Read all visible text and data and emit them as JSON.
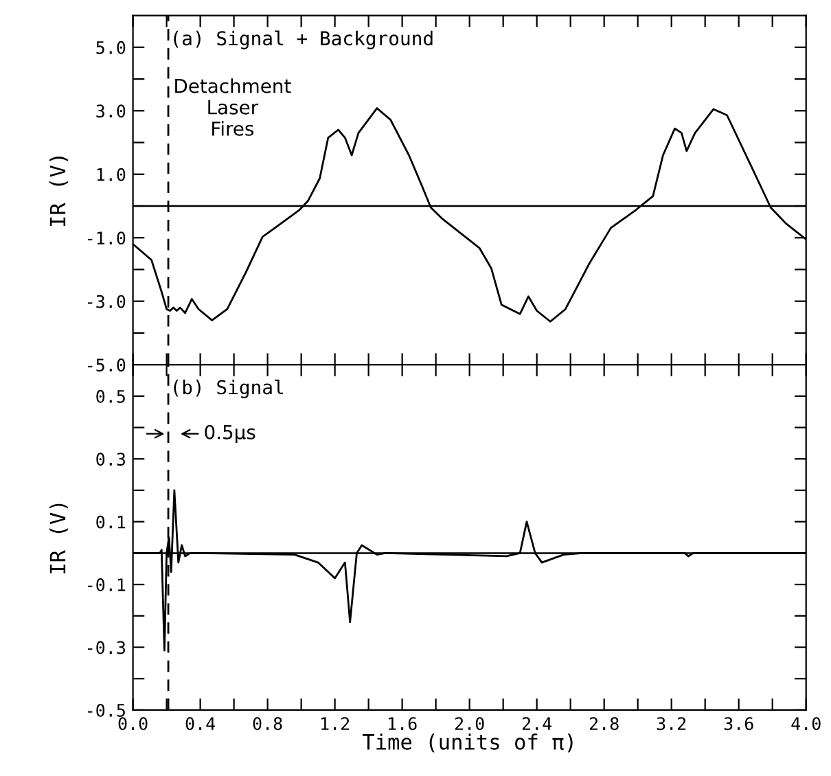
{
  "chart_data": [
    {
      "type": "line",
      "ylabel": "IR (V)",
      "tick_labels": "y",
      "grid": false,
      "legend": false,
      "line_style": "solid",
      "marker": "none",
      "annotations": [
        "(a) Signal + Background"
      ],
      "xlim": [
        0,
        4
      ],
      "xticks": [
        {
          "value": 0,
          "label": null
        },
        {
          "value": 0.2,
          "label": null
        },
        {
          "value": 0.4,
          "label": null
        },
        {
          "value": 0.6,
          "label": null
        },
        {
          "value": 0.8,
          "label": null
        },
        {
          "value": 1.0,
          "label": null
        },
        {
          "value": 1.2,
          "label": null
        },
        {
          "value": 1.4,
          "label": null
        },
        {
          "value": 1.6,
          "label": null
        },
        {
          "value": 1.8,
          "label": null
        },
        {
          "value": 2.0,
          "label": null
        },
        {
          "value": 2.2,
          "label": null
        },
        {
          "value": 2.4,
          "label": null
        },
        {
          "value": 2.6,
          "label": null
        },
        {
          "value": 2.8,
          "label": null
        },
        {
          "value": 3.0,
          "label": null
        },
        {
          "value": 3.2,
          "label": null
        },
        {
          "value": 3.4,
          "label": null
        },
        {
          "value": 3.6,
          "label": null
        },
        {
          "value": 3.8,
          "label": null
        },
        {
          "value": 4.0,
          "label": null
        }
      ],
      "ylim": [
        -5,
        6
      ],
      "yticks": [
        {
          "value": -5,
          "label": "-5.0"
        },
        {
          "value": -4,
          "label": null
        },
        {
          "value": -3,
          "label": "-3.0"
        },
        {
          "value": -2,
          "label": null
        },
        {
          "value": -1,
          "label": "-1.0"
        },
        {
          "value": 0,
          "label": null
        },
        {
          "value": 1,
          "label": "1.0"
        },
        {
          "value": 2,
          "label": null
        },
        {
          "value": 3,
          "label": "3.0"
        },
        {
          "value": 4,
          "label": null
        },
        {
          "value": 5,
          "label": "5.0"
        }
      ],
      "ref_lines": [
        {
          "axis": "y",
          "value": 0,
          "line_style": "solid",
          "color": "#000000"
        },
        {
          "axis": "x",
          "value": 0.21,
          "line_style": "dashed",
          "color": "#000000",
          "label": "Detachment\nLaser\nFires"
        }
      ],
      "series": [
        {
          "color": "#000000",
          "x": [
            0,
            0.11,
            0.17,
            0.2,
            0.22,
            0.24,
            0.26,
            0.28,
            0.31,
            0.35,
            0.39,
            0.47,
            0.56,
            0.67,
            0.77,
            0.88,
            0.99,
            1.04,
            1.11,
            1.16,
            1.22,
            1.26,
            1.3,
            1.34,
            1.45,
            1.53,
            1.64,
            1.72,
            1.77,
            1.84,
            2.06,
            2.13,
            2.19,
            2.3,
            2.35,
            2.4,
            2.48,
            2.57,
            2.71,
            2.84,
            2.99,
            3.09,
            3.15,
            3.22,
            3.26,
            3.29,
            3.34,
            3.45,
            3.53,
            3.67,
            3.79,
            3.88,
            4.0
          ],
          "values": [
            -1.2,
            -1.7,
            -2.7,
            -3.25,
            -3.3,
            -3.2,
            -3.3,
            -3.2,
            -3.37,
            -2.93,
            -3.25,
            -3.6,
            -3.25,
            -2.1,
            -0.97,
            -0.55,
            -0.12,
            0.16,
            0.87,
            2.15,
            2.4,
            2.15,
            1.6,
            2.3,
            3.08,
            2.72,
            1.6,
            0.6,
            -0.05,
            -0.41,
            -1.33,
            -1.97,
            -3.11,
            -3.4,
            -2.85,
            -3.3,
            -3.64,
            -3.25,
            -1.83,
            -0.69,
            -0.12,
            0.31,
            1.6,
            2.44,
            2.3,
            1.73,
            2.3,
            3.05,
            2.86,
            1.3,
            -0.05,
            -0.55,
            -1.05
          ]
        }
      ]
    },
    {
      "type": "line",
      "ylabel": "IR (V)",
      "xlabel": "Time (units of π)",
      "grid": false,
      "legend": false,
      "line_style": "solid",
      "marker": "none",
      "annotations": [
        "(b) Signal",
        "0.5μs"
      ],
      "xlim": [
        0,
        4
      ],
      "xticks": [
        {
          "value": 0,
          "label": "0.0"
        },
        {
          "value": 0.2,
          "label": null
        },
        {
          "value": 0.4,
          "label": "0.4"
        },
        {
          "value": 0.6,
          "label": null
        },
        {
          "value": 0.8,
          "label": "0.8"
        },
        {
          "value": 1.0,
          "label": null
        },
        {
          "value": 1.2,
          "label": "1.2"
        },
        {
          "value": 1.4,
          "label": null
        },
        {
          "value": 1.6,
          "label": "1.6"
        },
        {
          "value": 1.8,
          "label": null
        },
        {
          "value": 2.0,
          "label": "2.0"
        },
        {
          "value": 2.2,
          "label": null
        },
        {
          "value": 2.4,
          "label": "2.4"
        },
        {
          "value": 2.6,
          "label": null
        },
        {
          "value": 2.8,
          "label": "2.8"
        },
        {
          "value": 3.0,
          "label": null
        },
        {
          "value": 3.2,
          "label": "3.2"
        },
        {
          "value": 3.4,
          "label": null
        },
        {
          "value": 3.6,
          "label": "3.6"
        },
        {
          "value": 3.8,
          "label": null
        },
        {
          "value": 4.0,
          "label": "4.0"
        }
      ],
      "ylim": [
        -0.5,
        0.6
      ],
      "yticks": [
        {
          "value": -0.5,
          "label": "-0.5"
        },
        {
          "value": -0.4,
          "label": null
        },
        {
          "value": -0.3,
          "label": "-0.3"
        },
        {
          "value": -0.2,
          "label": null
        },
        {
          "value": -0.1,
          "label": "-0.1"
        },
        {
          "value": 0,
          "label": null
        },
        {
          "value": 0.1,
          "label": "0.1"
        },
        {
          "value": 0.2,
          "label": null
        },
        {
          "value": 0.3,
          "label": "0.3"
        },
        {
          "value": 0.4,
          "label": null
        },
        {
          "value": 0.5,
          "label": "0.5"
        }
      ],
      "ref_lines": [
        {
          "axis": "y",
          "value": 0,
          "line_style": "solid",
          "color": "#000000"
        },
        {
          "axis": "x",
          "value": 0.21,
          "line_style": "dashed",
          "color": "#000000"
        }
      ],
      "series": [
        {
          "color": "#000000",
          "x": [
            0,
            0.16,
            0.17,
            0.187,
            0.2,
            0.214,
            0.227,
            0.246,
            0.27,
            0.29,
            0.31,
            0.34,
            0.4,
            0.96,
            1.1,
            1.2,
            1.26,
            1.29,
            1.33,
            1.36,
            1.45,
            1.5,
            2.22,
            2.3,
            2.34,
            2.39,
            2.43,
            2.56,
            2.67,
            3.28,
            3.3,
            3.33,
            3.4,
            4.0
          ],
          "values": [
            0,
            0,
            0.01,
            -0.31,
            0,
            0.05,
            -0.06,
            0.2,
            -0.03,
            0.025,
            -0.01,
            0,
            0,
            -0.005,
            -0.03,
            -0.08,
            -0.03,
            -0.22,
            0,
            0.025,
            -0.005,
            0,
            -0.01,
            0,
            0.1,
            0,
            -0.03,
            -0.005,
            0,
            0,
            -0.01,
            0,
            0,
            0
          ]
        }
      ]
    }
  ]
}
